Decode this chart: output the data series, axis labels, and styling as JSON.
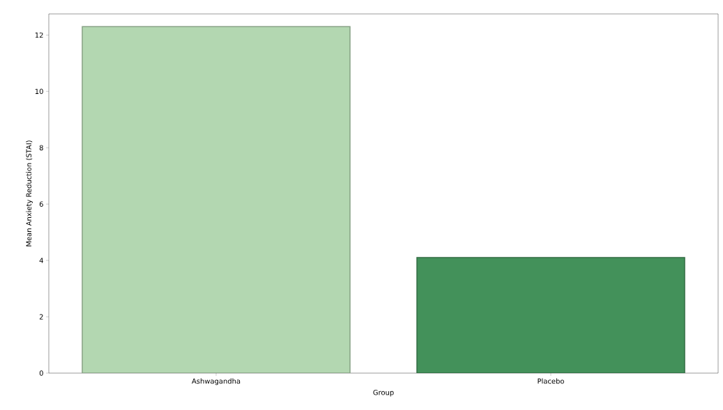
{
  "chart_data": {
    "type": "bar",
    "xlabel": "Group",
    "ylabel": "Mean Anxiety Reduction (STAI)",
    "categories": [
      "Ashwagandha",
      "Placebo"
    ],
    "values": [
      12.3,
      4.1
    ],
    "colors": [
      "#b3d7b1",
      "#43915a"
    ],
    "ylim": [
      0,
      12.75
    ],
    "yticks": [
      0,
      2,
      4,
      6,
      8,
      10,
      12
    ],
    "grid": false
  }
}
